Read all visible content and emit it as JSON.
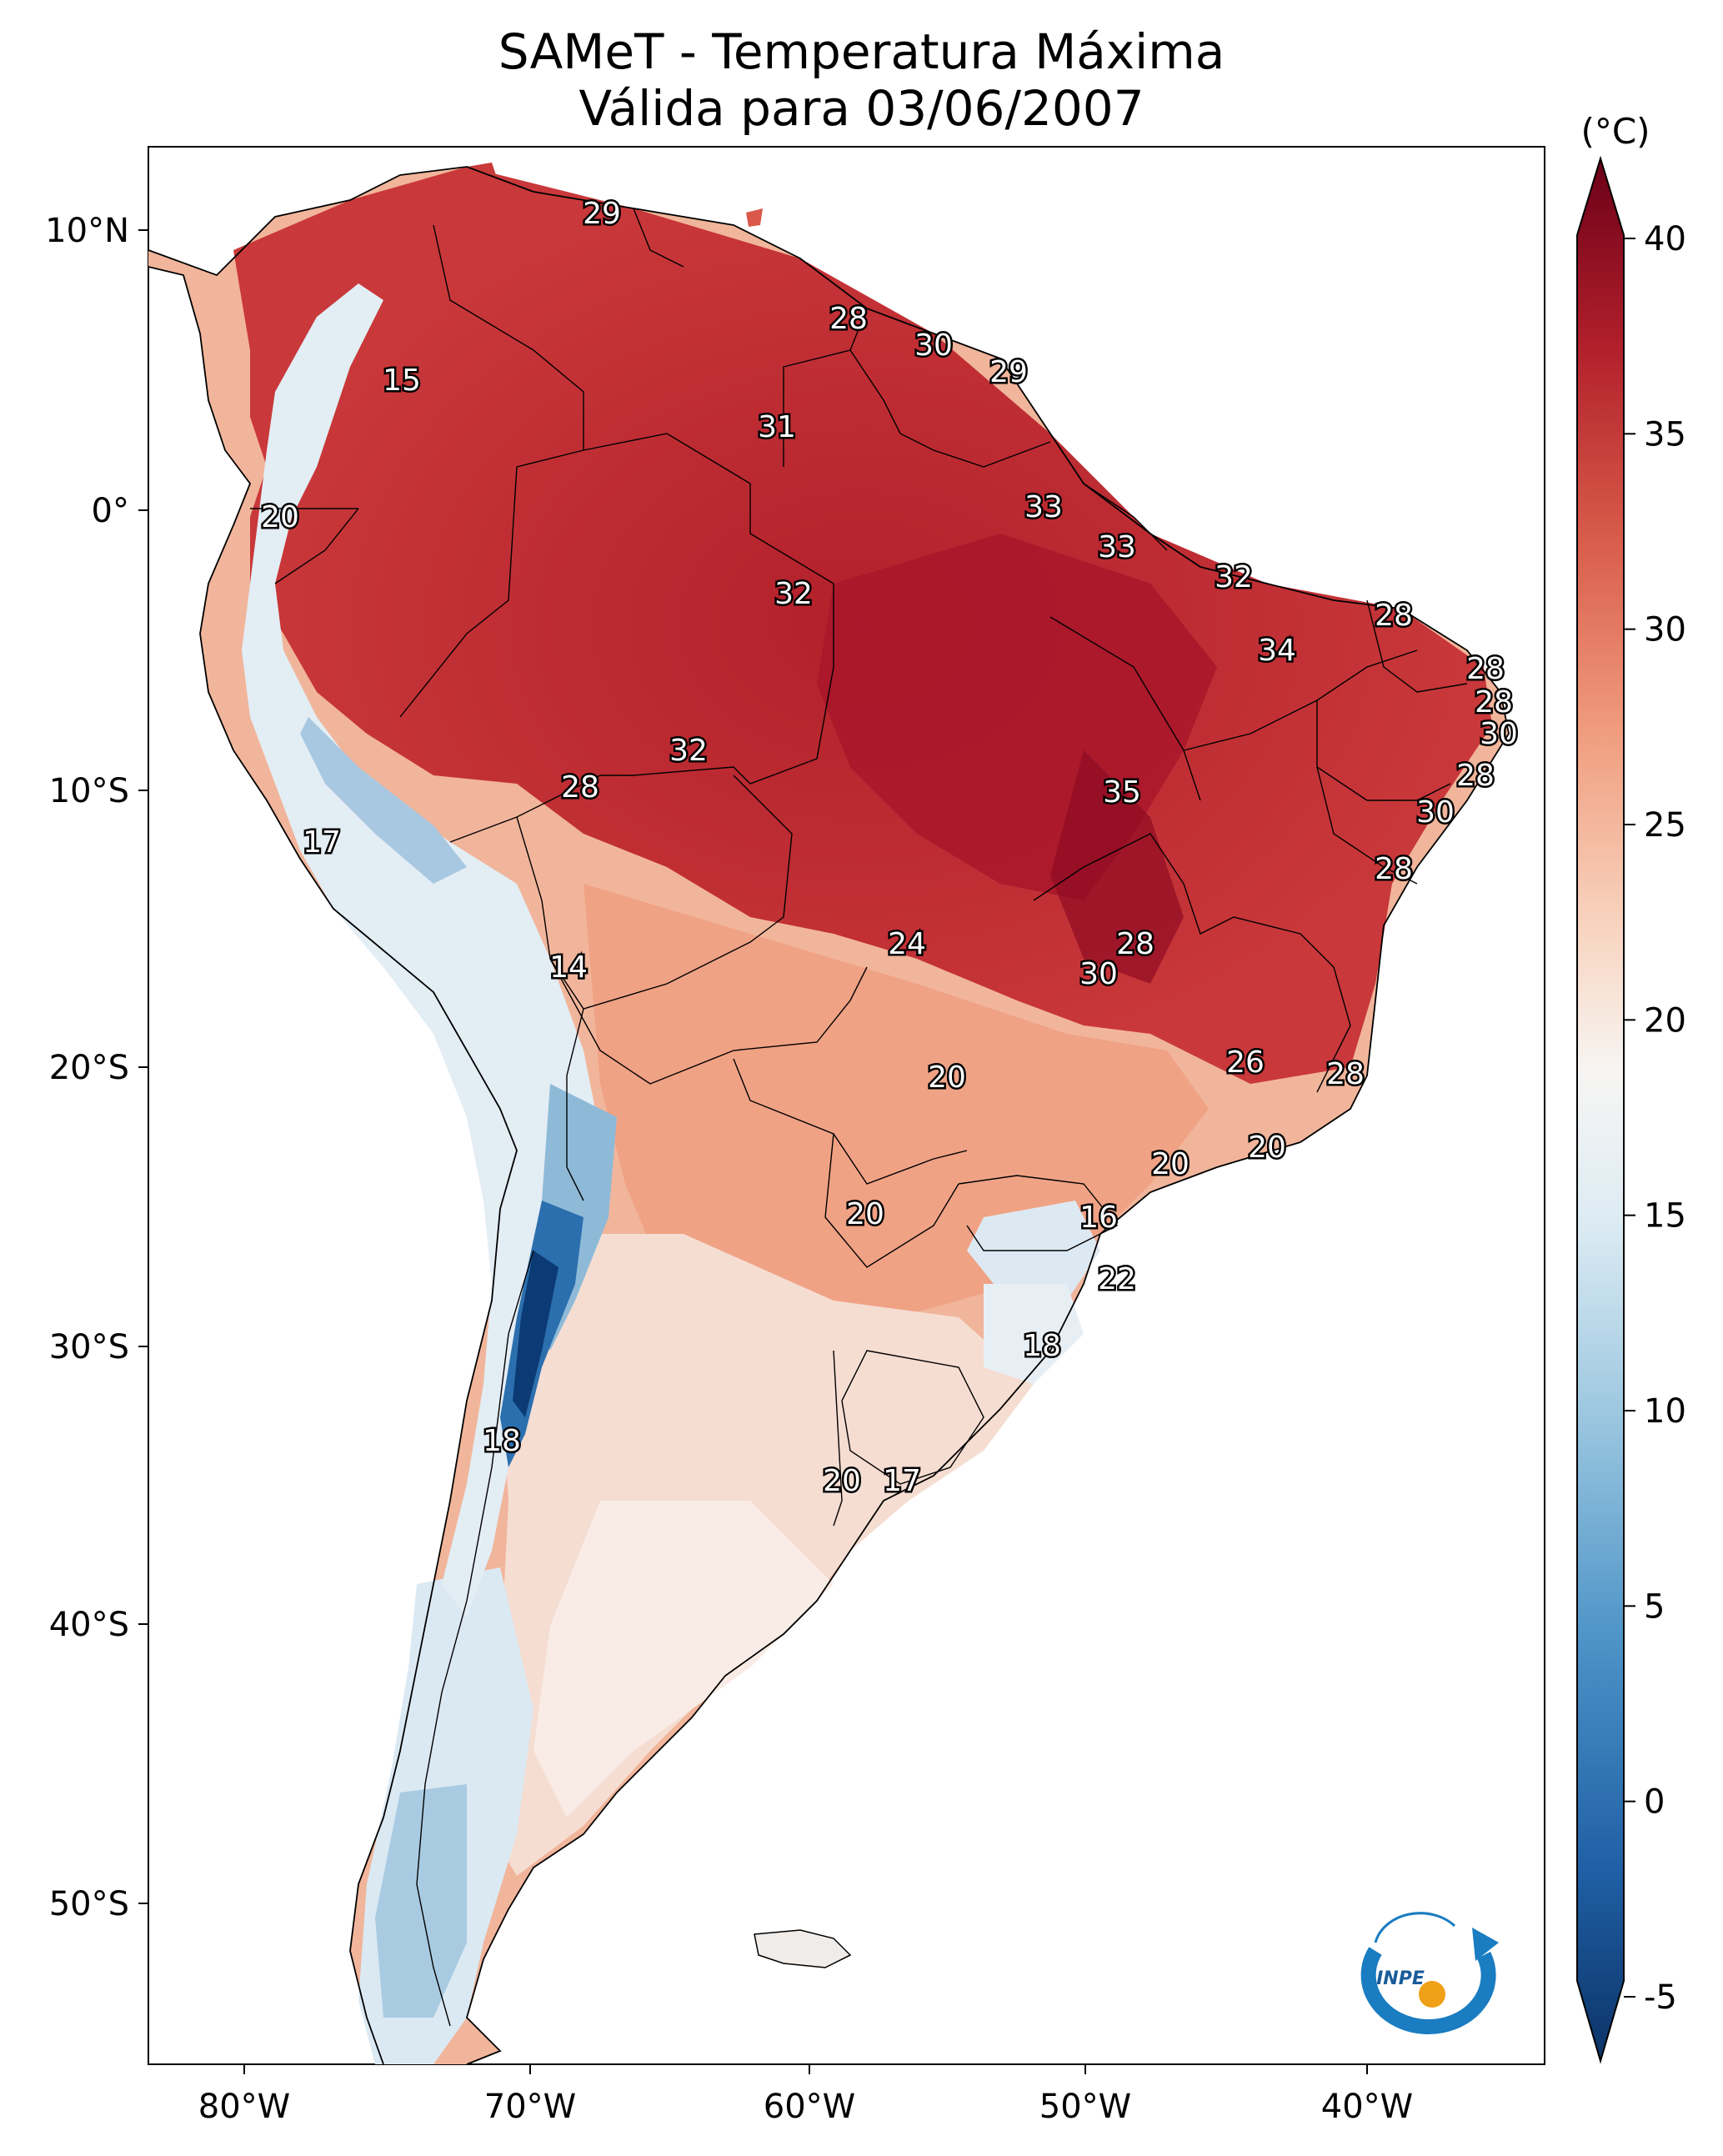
{
  "title": {
    "line1": "SAMeT - Temperatura Máxima",
    "line2": "Válida para 03/06/2007"
  },
  "colorbar": {
    "unit": "(°C)",
    "ticks": [
      "40",
      "35",
      "30",
      "25",
      "20",
      "15",
      "10",
      "5",
      "0",
      "-5"
    ],
    "range": [
      -5,
      40
    ]
  },
  "axes": {
    "lon_labels": [
      "80°W",
      "70°W",
      "60°W",
      "50°W",
      "40°W"
    ],
    "lat_labels": [
      "10°N",
      "0°",
      "10°S",
      "20°S",
      "30°S",
      "40°S",
      "50°S"
    ]
  },
  "map_labels": [
    {
      "text": "29"
    },
    {
      "text": "28"
    },
    {
      "text": "30"
    },
    {
      "text": "29"
    },
    {
      "text": "15"
    },
    {
      "text": "31"
    },
    {
      "text": "20"
    },
    {
      "text": "33"
    },
    {
      "text": "33"
    },
    {
      "text": "32"
    },
    {
      "text": "32"
    },
    {
      "text": "28"
    },
    {
      "text": "34"
    },
    {
      "text": "28"
    },
    {
      "text": "28"
    },
    {
      "text": "30"
    },
    {
      "text": "32"
    },
    {
      "text": "28"
    },
    {
      "text": "35"
    },
    {
      "text": "28"
    },
    {
      "text": "17"
    },
    {
      "text": "30"
    },
    {
      "text": "28"
    },
    {
      "text": "24"
    },
    {
      "text": "28"
    },
    {
      "text": "14"
    },
    {
      "text": "30"
    },
    {
      "text": "26"
    },
    {
      "text": "28"
    },
    {
      "text": "20"
    },
    {
      "text": "20"
    },
    {
      "text": "20"
    },
    {
      "text": "20"
    },
    {
      "text": "16"
    },
    {
      "text": "22"
    },
    {
      "text": "18"
    },
    {
      "text": "18"
    },
    {
      "text": "20"
    },
    {
      "text": "17"
    }
  ],
  "logo": {
    "text": "INPE"
  },
  "colors": {
    "hot": "#b2202b",
    "warm": "#e8795f",
    "mild": "#f7cdb6",
    "neutral": "#f7f2f0",
    "cool": "#cfe2ef",
    "cold": "#2c6fae",
    "coldest": "#0b3a74"
  }
}
